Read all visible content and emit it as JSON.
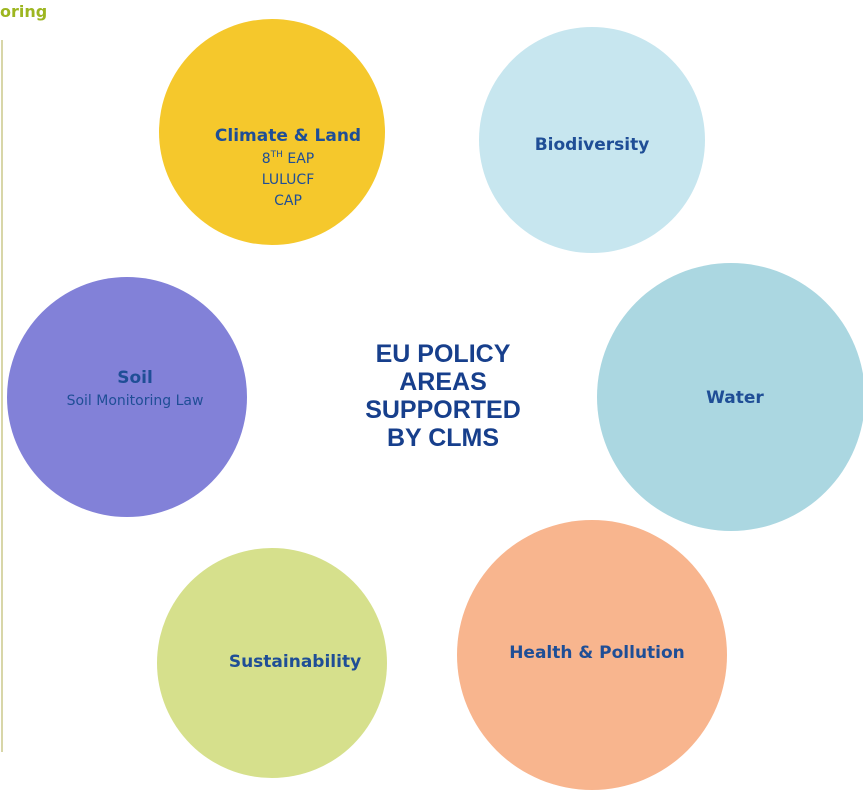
{
  "header": {
    "partial_title": "oring"
  },
  "center": {
    "lines": [
      "EU POLICY",
      "AREAS",
      "SUPPORTED",
      "BY CLMS"
    ]
  },
  "nodes": [
    {
      "label": "Climate & Land",
      "items": [
        {
          "base": "8",
          "sup": "TH",
          "rest": " EAP"
        },
        "LULUCF",
        "CAP"
      ]
    },
    {
      "label": "Biodiversity"
    },
    {
      "label": "Soil",
      "items": [
        "Soil Monitoring Law"
      ]
    },
    {
      "label": "Water"
    },
    {
      "label": "Sustainability"
    },
    {
      "label": "Health & Pollution"
    }
  ]
}
